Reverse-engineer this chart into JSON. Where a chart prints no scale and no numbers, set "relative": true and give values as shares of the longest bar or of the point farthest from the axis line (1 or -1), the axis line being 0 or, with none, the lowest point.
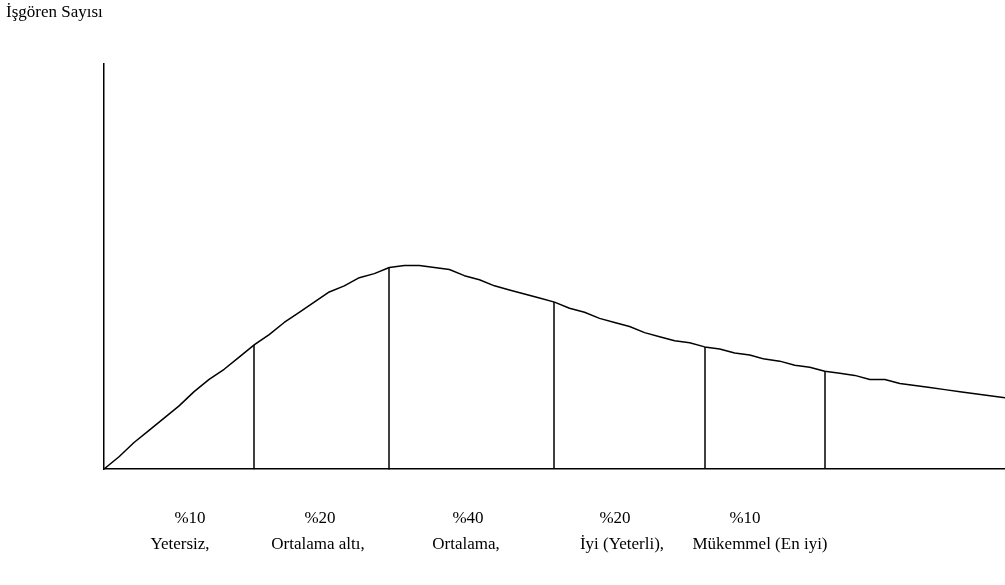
{
  "chart_data": {
    "type": "line",
    "relative": true,
    "marker": "none",
    "line_style": "solid",
    "categories": [
      null,
      null,
      null,
      null,
      null,
      null,
      null,
      null,
      null,
      null,
      null,
      null,
      null,
      null,
      null,
      null,
      null,
      null,
      null,
      null,
      null,
      null,
      null,
      null,
      null,
      null,
      null,
      null,
      null,
      null,
      null,
      null,
      null,
      null,
      null,
      null,
      null,
      null,
      null,
      null,
      null,
      null,
      null,
      null,
      null,
      null,
      null,
      null,
      null,
      null,
      null,
      null,
      null,
      null,
      null,
      null,
      null,
      null,
      null,
      null,
      null
    ],
    "series": [
      {
        "color": "#000000",
        "values": [
          0,
          0.06,
          0.13,
          0.19,
          0.25,
          0.31,
          0.38,
          0.44,
          0.49,
          0.55,
          0.61,
          0.66,
          0.72,
          0.77,
          0.82,
          0.87,
          0.9,
          0.94,
          0.96,
          0.99,
          1,
          1,
          0.99,
          0.98,
          0.95,
          0.93,
          0.9,
          0.88,
          0.86,
          0.84,
          0.82,
          0.79,
          0.77,
          0.74,
          0.72,
          0.7,
          0.67,
          0.65,
          0.63,
          0.62,
          0.6,
          0.59,
          0.57,
          0.56,
          0.54,
          0.53,
          0.51,
          0.5,
          0.48,
          0.47,
          0.46,
          0.44,
          0.44,
          0.42,
          0.41,
          0.4,
          0.39,
          0.38,
          0.37,
          0.36,
          0.35
        ]
      }
    ],
    "annotations": [
      "İşgören Sayısı",
      "%10",
      "%20",
      "%40",
      "%20",
      "%10",
      "Yetersiz,",
      "Ortalama altı,",
      "Ortalama,",
      "İyi (Yeterli),",
      "Mükemmel (En iyi)"
    ]
  }
}
